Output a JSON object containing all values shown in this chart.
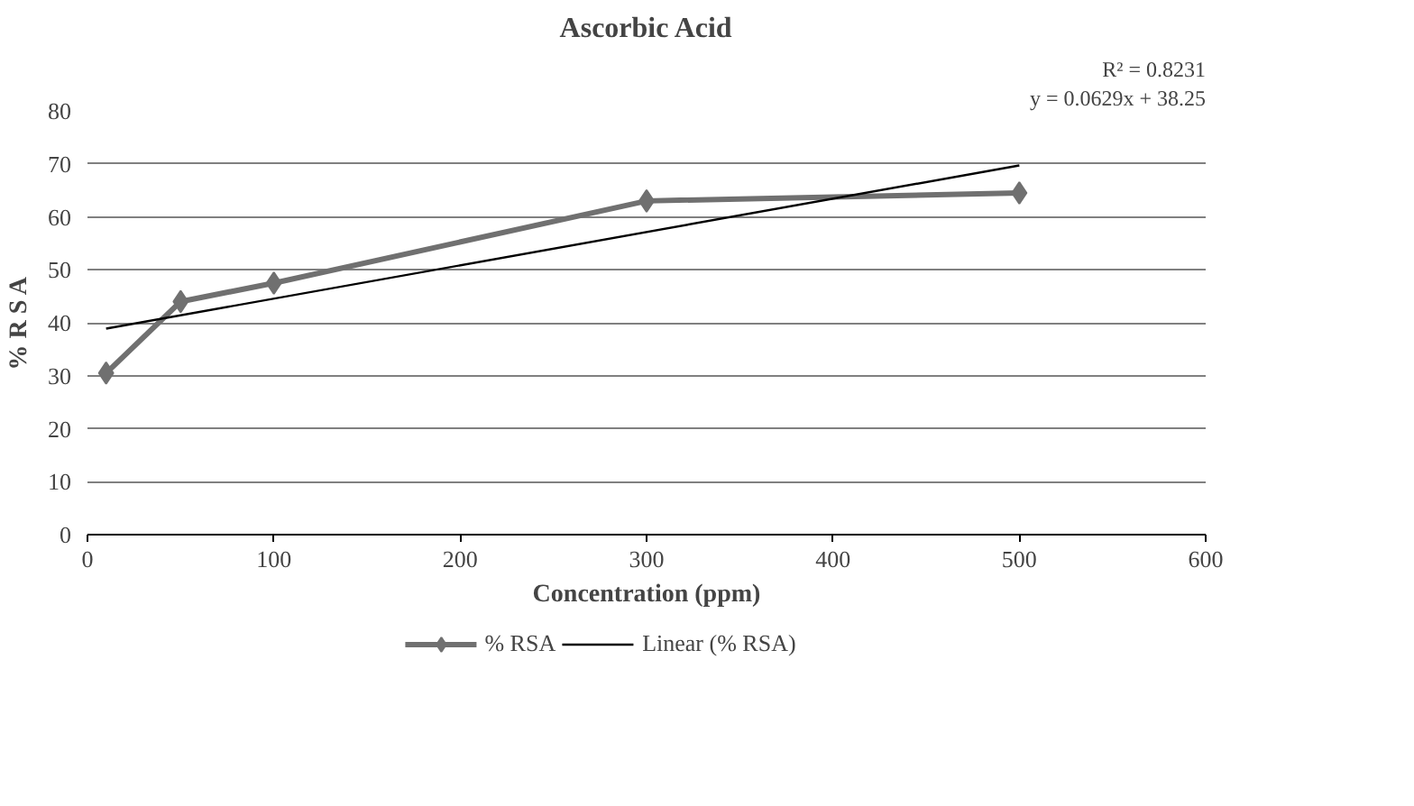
{
  "chart_data": {
    "type": "line",
    "title": "Ascorbic Acid",
    "xlabel": "Concentration (ppm)",
    "ylabel": "% R S A",
    "annotations": [
      "y = 0.0629x + 38.25",
      "R² = 0.8231"
    ],
    "xlim": [
      0,
      600
    ],
    "xticks": [
      0,
      100,
      200,
      300,
      400,
      500,
      600
    ],
    "ylim": [
      0,
      80
    ],
    "yticks": [
      0,
      10,
      20,
      30,
      40,
      50,
      60,
      70,
      80
    ],
    "grid": "y",
    "legend": "bottom",
    "series": [
      {
        "name": "% RSA",
        "color": "#707070",
        "x": [
          10,
          50,
          100,
          300,
          500
        ],
        "values": [
          30.5,
          44,
          47.5,
          63,
          64.5
        ],
        "marker": "diamond",
        "line_style": "solid"
      },
      {
        "name": "Linear (% RSA)",
        "type": "line",
        "color": "#000000",
        "x": [
          10,
          500
        ],
        "values": [
          38.9,
          69.7
        ],
        "marker": "none",
        "line_style": "solid"
      }
    ]
  }
}
